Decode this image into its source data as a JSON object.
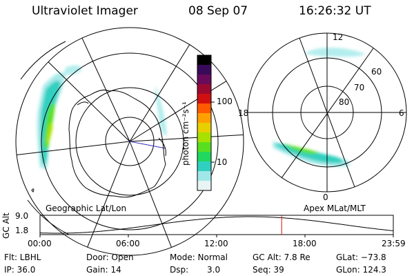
{
  "header": {
    "instrument": "Ultraviolet Imager",
    "date": "08 Sep 07",
    "time": "16:26:32 UT"
  },
  "left_map": {
    "label": "Geographic Lat/Lon"
  },
  "right_map": {
    "label": "Apex MLat/MLT",
    "mlt_labels": [
      "12",
      "18",
      "6",
      "0"
    ],
    "lat_labels": [
      "60",
      "70",
      "80"
    ]
  },
  "colorbar": {
    "unit_label": "photon cm⁻²s⁻¹",
    "ticks": [
      "100",
      "10"
    ],
    "colors": [
      "#000000",
      "#3a0a5a",
      "#6a0a5a",
      "#9a0a30",
      "#d01010",
      "#ff5a00",
      "#ffa000",
      "#e8d000",
      "#a8e000",
      "#58e020",
      "#20d860",
      "#30d0c0",
      "#a0e8e8",
      "#e8f4f4"
    ]
  },
  "altitude_plot": {
    "ylabel": "GC Alt",
    "y_ticks": [
      "9.0",
      "1.8"
    ],
    "x_ticks": [
      "00:00",
      "06:00",
      "12:00",
      "18:00",
      "23:59"
    ],
    "current_time_fraction": 0.684,
    "marker_color": "#d01010"
  },
  "status": {
    "filter": "Flt: LBHL",
    "ip": "IP: 36.0",
    "door": "Door: Open",
    "gain": "Gain: 14",
    "mode": "Mode: Normal",
    "dsp_label": "Dsp:",
    "dsp_value": "3.0",
    "gc_alt": "GC Alt: 7.8 Re",
    "seq": "Seq: 39",
    "glat": "GLat: −73.8",
    "glon": "GLon: 124.3"
  }
}
